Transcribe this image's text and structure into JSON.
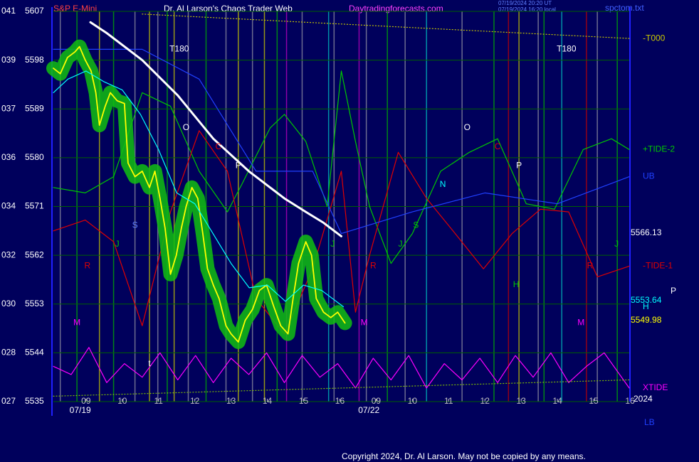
{
  "chart_data": {
    "type": "line",
    "symbol": "S&P E-Mini",
    "title": "Dr. Al Larson's Chaos Trader Web",
    "subtitle": "Daytradingforecasts.com",
    "timestamps": [
      "07/19/2024 20:20 UT",
      "07/19/2024 16:20 local"
    ],
    "file_name": "spctom.txt",
    "copyright": "Copyright 2024, Dr. Al Larson. May not be copied by any means.",
    "xlim": [
      -0.9,
      15
    ],
    "ylim": [
      5535,
      5607
    ],
    "yticks": [
      5535,
      5544,
      5553,
      5562,
      5571,
      5580,
      5589,
      5598,
      5607
    ],
    "angle_labels": [
      "027",
      "028",
      "030",
      "032",
      "034",
      "036",
      "037",
      "039",
      "041"
    ],
    "xticks": [
      {
        "value": 0,
        "label": "09"
      },
      {
        "value": 1,
        "label": "10"
      },
      {
        "value": 2,
        "label": "11"
      },
      {
        "value": 3,
        "label": "12"
      },
      {
        "value": 4,
        "label": "13"
      },
      {
        "value": 5,
        "label": "14"
      },
      {
        "value": 6,
        "label": "15"
      },
      {
        "value": 7,
        "label": "16"
      },
      {
        "value": 8,
        "label": "09"
      },
      {
        "value": 9,
        "label": "10"
      },
      {
        "value": 10,
        "label": "11"
      },
      {
        "value": 11,
        "label": "12"
      },
      {
        "value": 12,
        "label": "13"
      },
      {
        "value": 13,
        "label": "14"
      },
      {
        "value": 14,
        "label": "15"
      },
      {
        "value": 15,
        "label": "16"
      }
    ],
    "date_labels": [
      {
        "value": -0.16,
        "label": "07/19"
      },
      {
        "value": 7.8,
        "label": "07/22"
      }
    ],
    "grid": true,
    "series": [
      {
        "name": "+TIDE-2",
        "color": "#00c800",
        "style": "solid",
        "x": [
          -0.9,
          -0.02,
          0.76,
          1.55,
          2.33,
          3.12,
          3.9,
          4.29,
          5.08,
          5.47,
          6.06,
          6.65,
          7.04,
          7.43,
          7.82,
          8.41,
          9,
          9.78,
          10.57,
          11.35,
          12.14,
          12.92,
          13.71,
          14.49,
          14.98
        ],
        "values": [
          5574.5,
          5573.5,
          5576.5,
          5592,
          5589.5,
          5577.5,
          5570,
          5575,
          5585.5,
          5588,
          5583,
          5571,
          5596,
          5583,
          5571,
          5560.5,
          5566,
          5577.5,
          5581,
          5583.5,
          5571.5,
          5570.5,
          5581.5,
          5583.5,
          5581.5
        ]
      },
      {
        "name": "-TIDE-1",
        "color": "#e00000",
        "style": "solid",
        "x": [
          -0.9,
          -0.02,
          0.76,
          1.55,
          2.33,
          3.12,
          3.9,
          4.69,
          5.47,
          6.25,
          7.04,
          7.43,
          7.82,
          8.61,
          9.39,
          10.18,
          10.96,
          11.75,
          12.53,
          13.31,
          14.1,
          14.98
        ],
        "values": [
          5566.5,
          5568.5,
          5564.5,
          5549,
          5570,
          5585,
          5577.5,
          5554,
          5547.5,
          5559.5,
          5577.5,
          5551.5,
          5562,
          5581,
          5572.5,
          5566,
          5559.5,
          5566,
          5570.5,
          5570,
          5558,
          5560
        ]
      },
      {
        "name": "UB",
        "color": "#2040ff",
        "style": "solid",
        "x": [
          -0.9,
          1.55,
          3.12,
          4.69,
          6.25,
          7.04,
          9,
          11,
          13,
          14.98
        ],
        "values": [
          5600,
          5600,
          5594.5,
          5577.5,
          5577.5,
          5566,
          5570,
          5573.5,
          5571.5,
          5576.5
        ]
      },
      {
        "name": "XTIDE",
        "color": "#ff00ff",
        "style": "solid",
        "x": [
          -0.9,
          -0.41,
          0.08,
          0.57,
          1.06,
          1.55,
          2.04,
          2.53,
          3.02,
          3.51,
          4,
          4.49,
          4.98,
          5.47,
          5.96,
          6.45,
          6.94,
          7.43,
          7.92,
          8.41,
          8.9,
          9.39,
          9.88,
          10.37,
          10.86,
          11.35,
          11.84,
          12.33,
          12.82,
          13.31,
          13.8,
          14.29,
          14.98
        ],
        "values": [
          5541.5,
          5540,
          5545,
          5538.5,
          5542,
          5539.5,
          5544,
          5539,
          5543.5,
          5538.5,
          5543,
          5540,
          5544,
          5538.5,
          5543.5,
          5539.5,
          5542,
          5537.5,
          5543,
          5539,
          5543.5,
          5537.5,
          5542,
          5539,
          5543,
          5538.5,
          5543.5,
          5539.5,
          5544,
          5538.5,
          5541.5,
          5544,
          5537.5
        ]
      },
      {
        "name": "-T000",
        "color": "#c8c800",
        "style": "dotted",
        "x": [
          1.55,
          14.98
        ],
        "values": [
          5606.5,
          5602
        ]
      },
      {
        "color": "#80c000",
        "style": "dotted",
        "x": [
          -0.9,
          14.98
        ],
        "values": [
          5536,
          5539
        ]
      },
      {
        "color": "#ffffff",
        "style": "bold",
        "x": [
          0.12,
          0.57,
          1.55,
          2.53,
          3.51,
          4.49,
          5.47,
          6.06,
          6.55,
          7.04
        ],
        "values": [
          5605,
          5603,
          5598,
          5591.5,
          5583.5,
          5577.5,
          5572.5,
          5570,
          5568,
          5565.5
        ]
      },
      {
        "color": "#ffff00",
        "style": "glow",
        "x": [
          -0.9,
          -0.71,
          -0.51,
          -0.31,
          -0.18,
          -0.02,
          0.14,
          0.27,
          0.37,
          0.53,
          0.67,
          0.86,
          1.06,
          1.16,
          1.35,
          1.55,
          1.75,
          1.9,
          2.04,
          2.18,
          2.33,
          2.49,
          2.63,
          2.76,
          2.92,
          3.08,
          3.22,
          3.35,
          3.51,
          3.67,
          3.86,
          4,
          4.2,
          4.39,
          4.59,
          4.78,
          4.98,
          5.18,
          5.37,
          5.57,
          5.71,
          5.86,
          6.06,
          6.22,
          6.35,
          6.55,
          6.75,
          6.94,
          7.14
        ],
        "values": [
          5596.5,
          5595.5,
          5598.5,
          5599.5,
          5600.5,
          5598,
          5596,
          5592,
          5586,
          5589.5,
          5592,
          5590.5,
          5590,
          5579,
          5576.5,
          5577.5,
          5574.5,
          5577.5,
          5572.5,
          5567,
          5558.5,
          5562,
          5567,
          5571,
          5574.5,
          5572.5,
          5566,
          5559.5,
          5556.5,
          5554,
          5549,
          5547.5,
          5546,
          5550,
          5552,
          5555.5,
          5556.5,
          5552.5,
          5549,
          5547.5,
          5554,
          5560.5,
          5564.5,
          5562,
          5554,
          5551.5,
          5550.5,
          5551.5,
          5549.5
        ]
      },
      {
        "color": "#00ffff",
        "style": "solid",
        "x": [
          -0.9,
          -0.5,
          0,
          0.5,
          1,
          1.5,
          2,
          2.5,
          3,
          3.5,
          4,
          4.5,
          5,
          5.5,
          6,
          6.5,
          7.1
        ],
        "values": [
          5592,
          5594.5,
          5596,
          5594,
          5592.5,
          5588,
          5581.5,
          5573.5,
          5571.5,
          5566,
          5560.5,
          5556,
          5556.5,
          5553.5,
          5556.5,
          5555.5,
          5552.5
        ]
      }
    ],
    "levels": [
      {
        "value": 5566.13,
        "color": "#ffffff"
      },
      {
        "value": 5553.64,
        "color": "#00ffff"
      },
      {
        "value": 5549.98,
        "color": "#ffff00"
      }
    ],
    "right_notes": {
      "p": "P",
      "h": "H",
      "year": "2024",
      "lb": "LB"
    },
    "time_lines": [
      {
        "x": -0.71,
        "color": "#9090a0"
      },
      {
        "x": -0.25,
        "color": "#00b000"
      },
      {
        "x": 0.37,
        "color": "#c8c800"
      },
      {
        "x": 0.76,
        "color": "#00b000"
      },
      {
        "x": 1.35,
        "color": "#9090a0"
      },
      {
        "x": 1.75,
        "color": "#c8c800"
      },
      {
        "x": 1.98,
        "color": "#9090a0"
      },
      {
        "x": 2.24,
        "color": "#00b000"
      },
      {
        "x": 2.43,
        "color": "#c8c800"
      },
      {
        "x": 2.82,
        "color": "#9090a0"
      },
      {
        "x": 3.31,
        "color": "#00b000"
      },
      {
        "x": 3.86,
        "color": "#9090a0"
      },
      {
        "x": 4.2,
        "color": "#c8c800"
      },
      {
        "x": 4.59,
        "color": "#9090a0"
      },
      {
        "x": 4.92,
        "color": "#c8c800"
      },
      {
        "x": 5.27,
        "color": "#00b000"
      },
      {
        "x": 5.53,
        "color": "#c000c0"
      },
      {
        "x": 5.96,
        "color": "#9090a0"
      },
      {
        "x": 6.69,
        "color": "#00c0c0"
      },
      {
        "x": 6.84,
        "color": "#9090a0"
      },
      {
        "x": 7.53,
        "color": "#c000c0"
      },
      {
        "x": 7.73,
        "color": "#9090a0"
      },
      {
        "x": 8.31,
        "color": "#00b000"
      },
      {
        "x": 8.8,
        "color": "#9090a0"
      },
      {
        "x": 9.39,
        "color": "#00c0c0"
      },
      {
        "x": 10.37,
        "color": "#9090a0"
      },
      {
        "x": 11.25,
        "color": "#00b000"
      },
      {
        "x": 11.65,
        "color": "#c00000"
      },
      {
        "x": 11.94,
        "color": "#c8c800"
      },
      {
        "x": 12.47,
        "color": "#9090a0"
      },
      {
        "x": 12.63,
        "color": "#00b000"
      },
      {
        "x": 13.12,
        "color": "#00c0c0"
      },
      {
        "x": 13.8,
        "color": "#c00000"
      },
      {
        "x": 14.1,
        "color": "#9090a0"
      },
      {
        "x": 14.65,
        "color": "#00b000"
      }
    ],
    "annotations": [
      {
        "text": "T180",
        "x": 2.57,
        "y": 5600,
        "color": "#ffffff"
      },
      {
        "text": "T180",
        "x": 13.25,
        "y": 5600,
        "color": "#ffffff"
      },
      {
        "text": "O",
        "x": 2.76,
        "y": 5585.5,
        "color": "#ffffff"
      },
      {
        "text": "O",
        "x": 10.51,
        "y": 5585.5,
        "color": "#ffffff"
      },
      {
        "text": "C",
        "x": 3.65,
        "y": 5582,
        "color": "#e00000"
      },
      {
        "text": "C",
        "x": 11.35,
        "y": 5582,
        "color": "#e00000"
      },
      {
        "text": "P",
        "x": 4.2,
        "y": 5578.5,
        "color": "#ffffff"
      },
      {
        "text": "P",
        "x": 11.94,
        "y": 5578.5,
        "color": "#ffffff"
      },
      {
        "text": "N",
        "x": 9.84,
        "y": 5575,
        "color": "#00ffff"
      },
      {
        "text": "S",
        "x": 1.35,
        "y": 5567.5,
        "color": "#6080ff"
      },
      {
        "text": "S",
        "x": 9.1,
        "y": 5567.5,
        "color": "#00c800"
      },
      {
        "text": "J",
        "x": 0.86,
        "y": 5564,
        "color": "#00c800"
      },
      {
        "text": "J",
        "x": 6.8,
        "y": 5564,
        "color": "#00c800"
      },
      {
        "text": "J",
        "x": 8.67,
        "y": 5564,
        "color": "#00c800"
      },
      {
        "text": "J",
        "x": 14.63,
        "y": 5564,
        "color": "#00c800"
      },
      {
        "text": "R",
        "x": 0.04,
        "y": 5560,
        "color": "#e00000"
      },
      {
        "text": "R",
        "x": 7.92,
        "y": 5560,
        "color": "#e00000"
      },
      {
        "text": "R",
        "x": 13.9,
        "y": 5560,
        "color": "#e00000"
      },
      {
        "text": "H",
        "x": 11.86,
        "y": 5556.5,
        "color": "#00c800"
      },
      {
        "text": "M",
        "x": -0.25,
        "y": 5549.5,
        "color": "#ff00ff"
      },
      {
        "text": "M",
        "x": 7.67,
        "y": 5549.5,
        "color": "#ff00ff"
      },
      {
        "text": "M",
        "x": 13.65,
        "y": 5549.5,
        "color": "#ff00ff"
      },
      {
        "text": "t",
        "x": 1.75,
        "y": 5542,
        "color": "#ffffff"
      }
    ]
  }
}
